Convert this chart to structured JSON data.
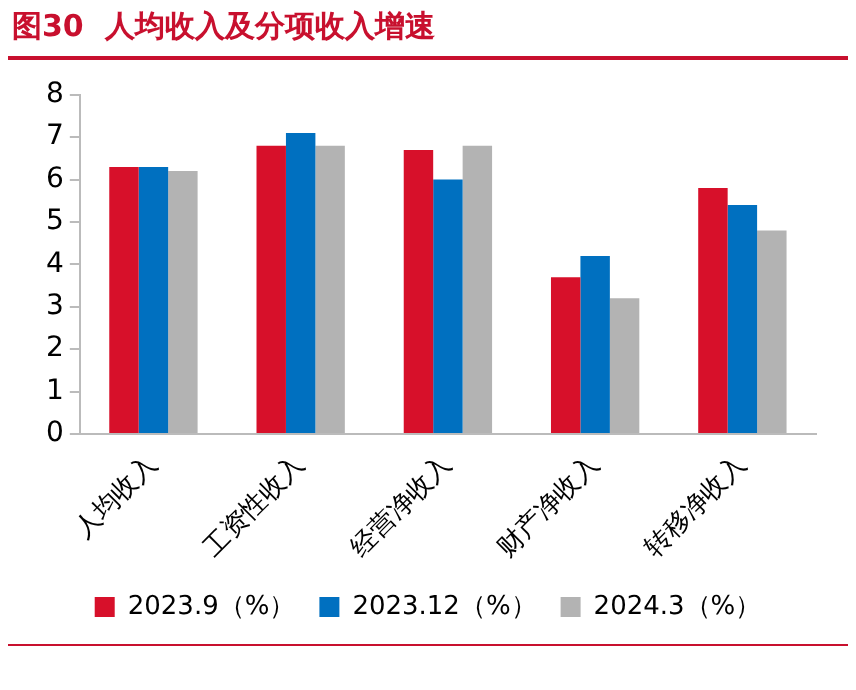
{
  "chart_data": {
    "type": "bar",
    "title": "图30  人均收入及分项收入增速",
    "categories": [
      "人均收入",
      "工资性收入",
      "经营净收入",
      "财产净收入",
      "转移净收入"
    ],
    "series": [
      {
        "name": "2023.9（%）",
        "color": "#d7102a",
        "values": [
          6.3,
          6.8,
          6.7,
          3.7,
          5.8
        ]
      },
      {
        "name": "2023.12（%）",
        "color": "#0070c0",
        "values": [
          6.3,
          7.1,
          6.0,
          4.2,
          5.4
        ]
      },
      {
        "name": "2024.3（%）",
        "color": "#b3b3b3",
        "values": [
          6.2,
          6.8,
          6.8,
          3.2,
          4.8
        ]
      }
    ],
    "ylim": [
      0,
      8
    ],
    "yticks": [
      0,
      1,
      2,
      3,
      4,
      5,
      6,
      7,
      8
    ],
    "grid": false,
    "legend": "bottom"
  }
}
